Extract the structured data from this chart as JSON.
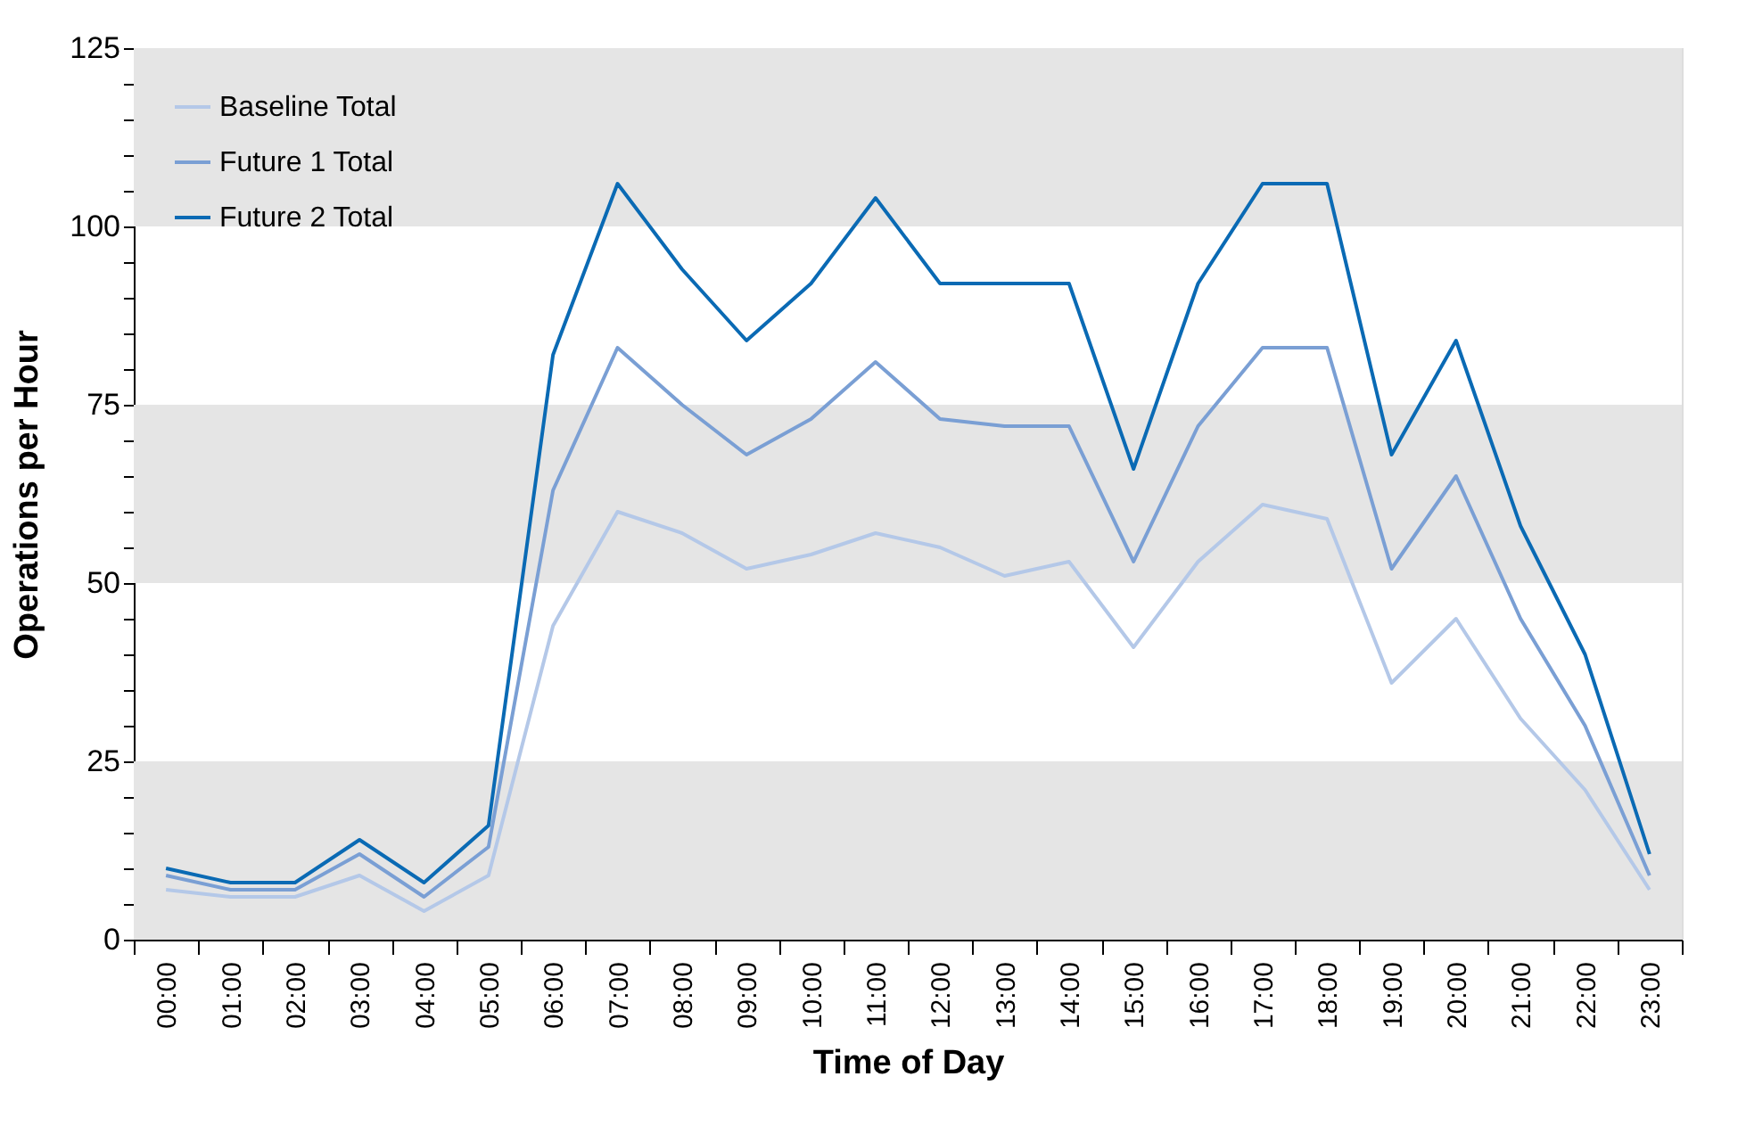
{
  "chart_data": {
    "type": "line",
    "xlabel": "Time of Day",
    "ylabel": "Operations per Hour",
    "categories": [
      "00:00",
      "01:00",
      "02:00",
      "03:00",
      "04:00",
      "05:00",
      "06:00",
      "07:00",
      "08:00",
      "09:00",
      "10:00",
      "11:00",
      "12:00",
      "13:00",
      "14:00",
      "15:00",
      "16:00",
      "17:00",
      "18:00",
      "19:00",
      "20:00",
      "21:00",
      "22:00",
      "23:00"
    ],
    "series": [
      {
        "name": "Baseline Total",
        "color": "#b4c8e8",
        "values": [
          7,
          6,
          6,
          9,
          4,
          9,
          44,
          60,
          57,
          52,
          54,
          57,
          55,
          51,
          53,
          41,
          53,
          61,
          59,
          36,
          45,
          31,
          21,
          7
        ]
      },
      {
        "name": "Future 1 Total",
        "color": "#7a9fd4",
        "values": [
          9,
          7,
          7,
          12,
          6,
          13,
          63,
          83,
          75,
          68,
          73,
          81,
          73,
          72,
          72,
          53,
          72,
          83,
          83,
          52,
          65,
          45,
          30,
          9
        ]
      },
      {
        "name": "Future 2 Total",
        "color": "#0a6ab4",
        "values": [
          10,
          8,
          8,
          14,
          8,
          16,
          82,
          106,
          94,
          84,
          92,
          104,
          92,
          92,
          92,
          66,
          92,
          106,
          106,
          68,
          84,
          58,
          40,
          12
        ]
      }
    ],
    "ylim": [
      0,
      125
    ],
    "yticks": [
      0,
      {
        "value": 5,
        "label": null
      },
      {
        "value": 10,
        "label": null
      },
      {
        "value": 15,
        "label": null
      },
      {
        "value": 20,
        "label": null
      },
      25,
      {
        "value": 30,
        "label": null
      },
      {
        "value": 35,
        "label": null
      },
      {
        "value": 40,
        "label": null
      },
      {
        "value": 45,
        "label": null
      },
      50,
      {
        "value": 55,
        "label": null
      },
      {
        "value": 60,
        "label": null
      },
      {
        "value": 65,
        "label": null
      },
      {
        "value": 70,
        "label": null
      },
      75,
      {
        "value": 80,
        "label": null
      },
      {
        "value": 85,
        "label": null
      },
      {
        "value": 90,
        "label": null
      },
      {
        "value": 95,
        "label": null
      },
      100,
      {
        "value": 105,
        "label": null
      },
      {
        "value": 110,
        "label": null
      },
      {
        "value": 115,
        "label": null
      },
      {
        "value": 120,
        "label": null
      },
      125
    ],
    "bands": [
      {
        "axis": "y",
        "from": 0,
        "to": 25,
        "color": "#e5e5e5"
      },
      {
        "axis": "y",
        "from": 50,
        "to": 75,
        "color": "#e5e5e5"
      },
      {
        "axis": "y",
        "from": 100,
        "to": 125,
        "color": "#e5e5e5"
      }
    ],
    "legend": "top left",
    "grid": false,
    "marker": "none",
    "line_style": "solid"
  }
}
